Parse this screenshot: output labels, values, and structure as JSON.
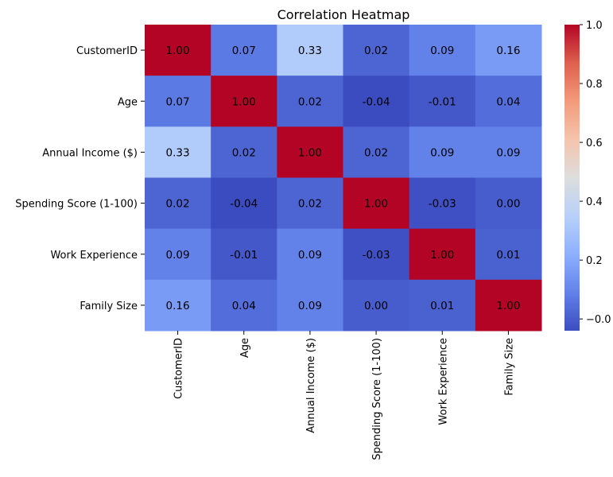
{
  "chart_data": {
    "type": "heatmap",
    "title": "Correlation Heatmap",
    "xlabel": "",
    "ylabel": "",
    "row_labels": [
      "CustomerID",
      "Age",
      "Annual Income ($)",
      "Spending Score (1-100)",
      "Work Experience",
      "Family Size"
    ],
    "col_labels": [
      "CustomerID",
      "Age",
      "Annual Income ($)",
      "Spending Score (1-100)",
      "Work Experience",
      "Family Size"
    ],
    "values": [
      [
        1.0,
        0.07,
        0.33,
        0.02,
        0.09,
        0.16
      ],
      [
        0.07,
        1.0,
        0.02,
        -0.04,
        -0.01,
        0.04
      ],
      [
        0.33,
        0.02,
        1.0,
        0.02,
        0.09,
        0.09
      ],
      [
        0.02,
        -0.04,
        0.02,
        1.0,
        -0.03,
        0.0
      ],
      [
        0.09,
        -0.01,
        0.09,
        -0.03,
        1.0,
        0.01
      ],
      [
        0.16,
        0.04,
        0.09,
        0.0,
        0.01,
        1.0
      ]
    ],
    "value_format": "2 decimals",
    "colormap": "coolwarm",
    "colorbar": {
      "range": [
        -0.04,
        1.0
      ],
      "ticks": [
        "−0.0",
        "0.2",
        "0.4",
        "0.6",
        "0.8",
        "1.0"
      ],
      "tick_values": [
        0.0,
        0.2,
        0.4,
        0.6,
        0.8,
        1.0
      ]
    },
    "grid": false,
    "legend": "colorbar-right"
  }
}
